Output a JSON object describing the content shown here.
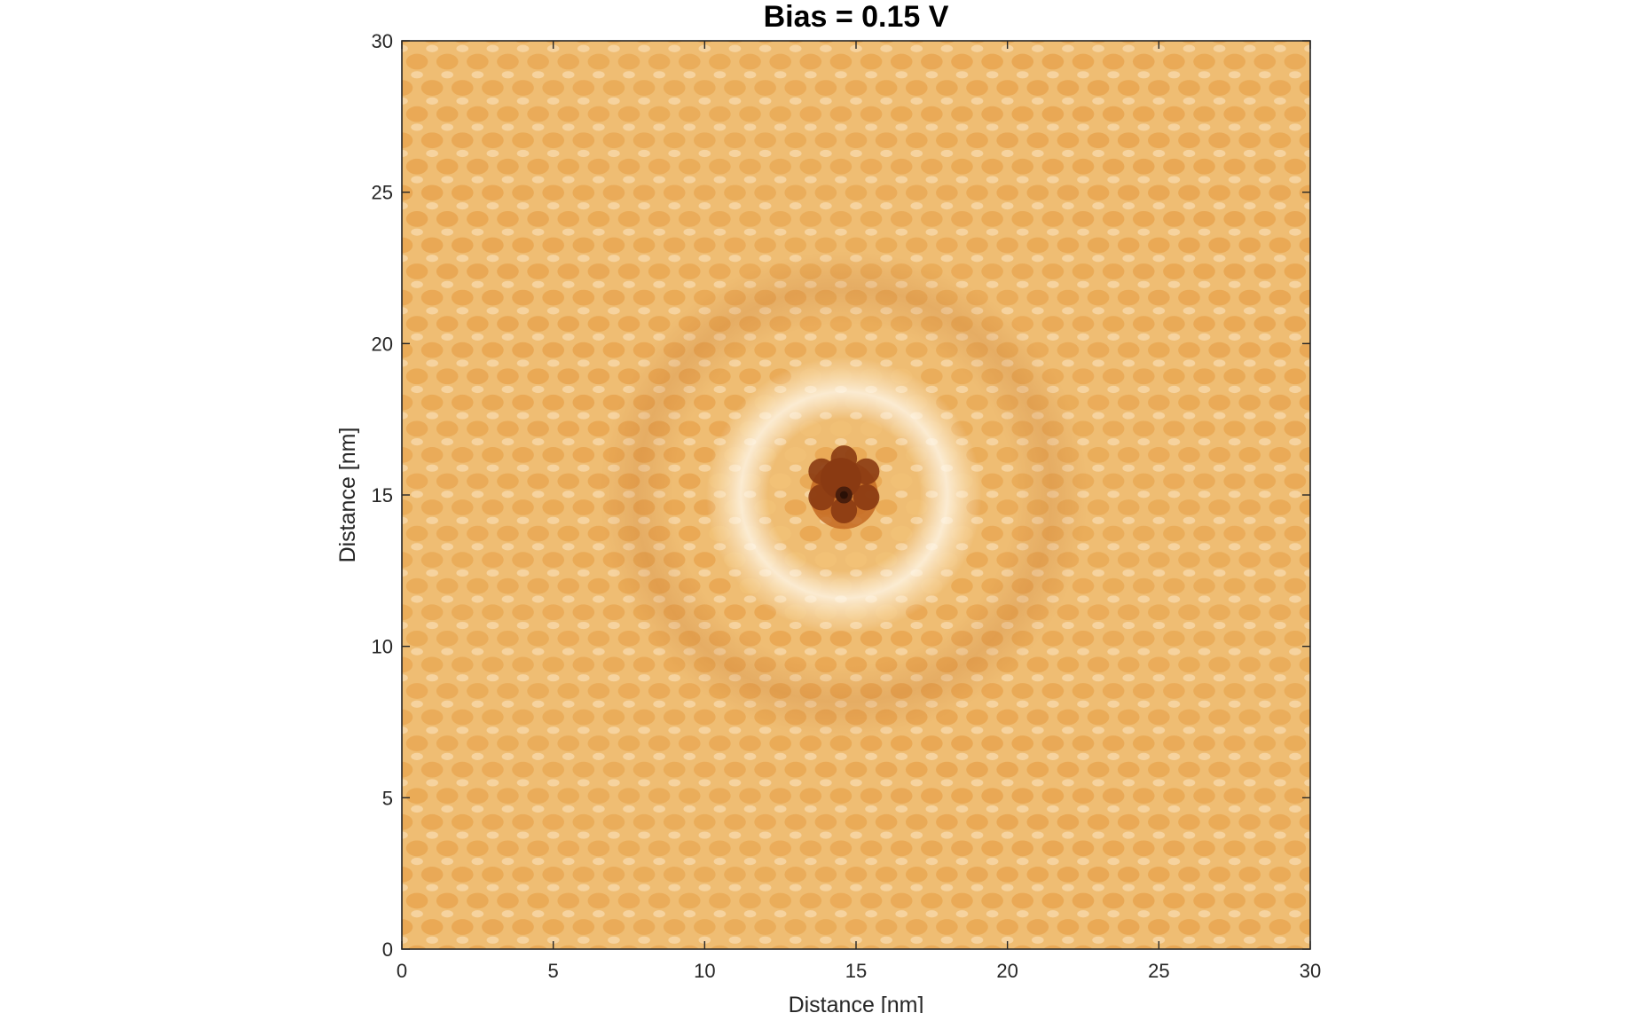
{
  "chart_data": {
    "type": "heatmap",
    "title": "Bias = 0.15 V",
    "xlabel": "Distance [nm]",
    "ylabel": "Distance [nm]",
    "xlim": [
      0,
      30
    ],
    "ylim": [
      0,
      30
    ],
    "xticks": [
      0,
      5,
      10,
      15,
      20,
      25,
      30
    ],
    "yticks": [
      0,
      5,
      10,
      15,
      20,
      25,
      30
    ],
    "grid": false,
    "colorbar": false,
    "colormap": [
      "#4a1e0c",
      "#8a3a12",
      "#c46a22",
      "#e8a550",
      "#f3c479",
      "#fbe6c2",
      "#fffaf2"
    ],
    "background_color": "#efbd73",
    "lattice": {
      "structure": "hexagonal",
      "spacing_nm": 1.0
    },
    "defect": {
      "center": [
        14.6,
        15.0
      ],
      "dark_core_radius_nm": 0.9,
      "bright_ring_radius_nm": 3.5,
      "core_color": "#2a1006"
    }
  }
}
